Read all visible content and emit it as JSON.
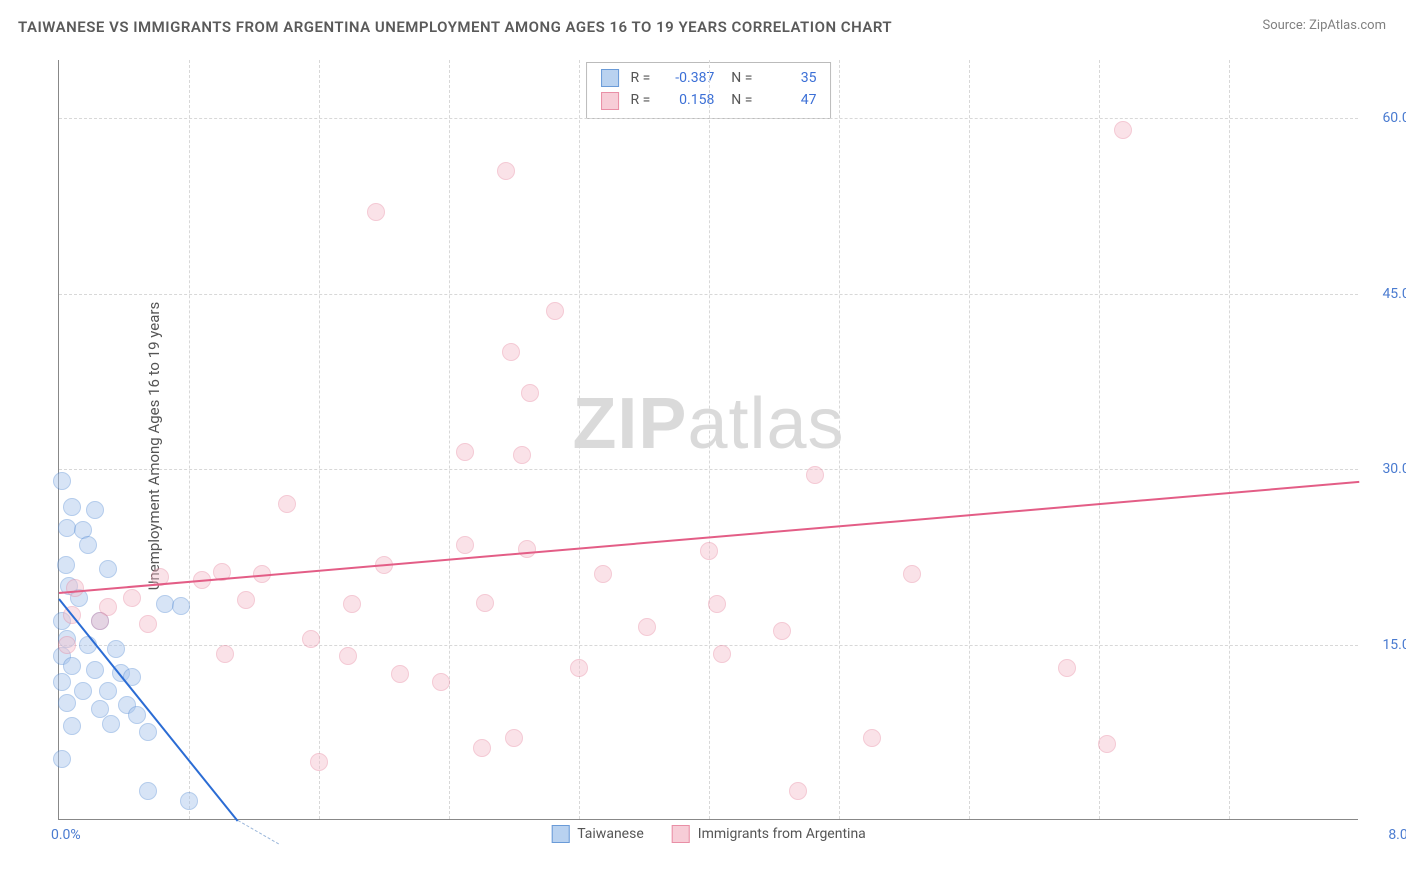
{
  "title": "TAIWANESE VS IMMIGRANTS FROM ARGENTINA UNEMPLOYMENT AMONG AGES 16 TO 19 YEARS CORRELATION CHART",
  "source": "Source: ZipAtlas.com",
  "ylabel": "Unemployment Among Ages 16 to 19 years",
  "watermark_bold": "ZIP",
  "watermark_light": "atlas",
  "chart": {
    "type": "scatter",
    "xlim": [
      0,
      8.0
    ],
    "ylim": [
      0,
      65
    ],
    "xtick_min_label": "0.0%",
    "xtick_max_label": "8.0%",
    "ytick_labels": [
      "15.0%",
      "30.0%",
      "45.0%",
      "60.0%"
    ],
    "ytick_values": [
      15,
      30,
      45,
      60
    ],
    "xgrid_values": [
      0.8,
      1.6,
      2.4,
      3.2,
      4.0,
      4.8,
      5.6,
      6.4,
      7.2
    ],
    "background_color": "#ffffff",
    "grid_color": "#d8d8d8",
    "axis_color": "#888888",
    "tick_color": "#4a7bd0",
    "marker_radius": 9,
    "marker_opacity": 0.45,
    "series": [
      {
        "name": "Taiwanese",
        "color_fill": "#a8c5ec",
        "color_stroke": "#5a8fd6",
        "swatch_fill": "#b9d2f0",
        "swatch_border": "#6a9bd8",
        "R": "-0.387",
        "N": "35",
        "trend": {
          "x1": 0.0,
          "y1": 19.0,
          "x2": 1.1,
          "y2": 0.0,
          "color": "#2b6cd4",
          "width": 2
        },
        "trend_ext": {
          "x1": 0.0,
          "y1": 19.0,
          "x2": 1.4,
          "y2": -6.0,
          "color": "#9ab6da"
        },
        "points": [
          [
            0.02,
            29.0
          ],
          [
            0.08,
            26.8
          ],
          [
            0.22,
            26.5
          ],
          [
            0.05,
            25.0
          ],
          [
            0.15,
            24.8
          ],
          [
            0.18,
            23.5
          ],
          [
            0.04,
            21.8
          ],
          [
            0.06,
            20.0
          ],
          [
            0.3,
            21.5
          ],
          [
            0.12,
            19.0
          ],
          [
            0.65,
            18.5
          ],
          [
            0.75,
            18.3
          ],
          [
            0.02,
            17.0
          ],
          [
            0.25,
            17.0
          ],
          [
            0.05,
            15.5
          ],
          [
            0.18,
            15.0
          ],
          [
            0.35,
            14.6
          ],
          [
            0.02,
            14.0
          ],
          [
            0.08,
            13.2
          ],
          [
            0.22,
            12.8
          ],
          [
            0.38,
            12.6
          ],
          [
            0.02,
            11.8
          ],
          [
            0.15,
            11.0
          ],
          [
            0.3,
            11.0
          ],
          [
            0.45,
            12.2
          ],
          [
            0.05,
            10.0
          ],
          [
            0.25,
            9.5
          ],
          [
            0.42,
            9.8
          ],
          [
            0.08,
            8.0
          ],
          [
            0.32,
            8.2
          ],
          [
            0.48,
            9.0
          ],
          [
            0.55,
            7.5
          ],
          [
            0.02,
            5.2
          ],
          [
            0.55,
            2.5
          ],
          [
            0.8,
            1.6
          ]
        ]
      },
      {
        "name": "Immigants from Argentina",
        "legend_label": "Immigrants from Argentina",
        "color_fill": "#f4c1cd",
        "color_stroke": "#e88aa2",
        "swatch_fill": "#f7cdd7",
        "swatch_border": "#e98fa6",
        "R": "0.158",
        "N": "47",
        "trend": {
          "x1": 0.0,
          "y1": 19.5,
          "x2": 8.0,
          "y2": 29.0,
          "color": "#e35d86",
          "width": 2
        },
        "points": [
          [
            6.55,
            59.0
          ],
          [
            2.75,
            55.5
          ],
          [
            1.95,
            52.0
          ],
          [
            3.05,
            43.5
          ],
          [
            2.78,
            40.0
          ],
          [
            2.9,
            36.5
          ],
          [
            2.5,
            31.5
          ],
          [
            2.85,
            31.2
          ],
          [
            4.65,
            29.5
          ],
          [
            1.4,
            27.0
          ],
          [
            2.5,
            23.5
          ],
          [
            2.88,
            23.2
          ],
          [
            4.0,
            23.0
          ],
          [
            1.0,
            21.2
          ],
          [
            1.25,
            21.0
          ],
          [
            0.62,
            20.8
          ],
          [
            0.88,
            20.5
          ],
          [
            2.0,
            21.8
          ],
          [
            3.35,
            21.0
          ],
          [
            5.25,
            21.0
          ],
          [
            0.1,
            19.8
          ],
          [
            0.45,
            19.0
          ],
          [
            0.3,
            18.2
          ],
          [
            1.15,
            18.8
          ],
          [
            1.8,
            18.5
          ],
          [
            2.62,
            18.6
          ],
          [
            4.05,
            18.5
          ],
          [
            0.08,
            17.5
          ],
          [
            0.25,
            17.0
          ],
          [
            0.55,
            16.8
          ],
          [
            1.55,
            15.5
          ],
          [
            3.62,
            16.5
          ],
          [
            4.45,
            16.2
          ],
          [
            0.05,
            15.0
          ],
          [
            1.02,
            14.2
          ],
          [
            1.78,
            14.0
          ],
          [
            3.2,
            13.0
          ],
          [
            4.08,
            14.2
          ],
          [
            6.2,
            13.0
          ],
          [
            2.1,
            12.5
          ],
          [
            2.35,
            11.8
          ],
          [
            2.8,
            7.0
          ],
          [
            2.6,
            6.2
          ],
          [
            1.6,
            5.0
          ],
          [
            4.55,
            2.5
          ],
          [
            5.0,
            7.0
          ],
          [
            6.45,
            6.5
          ]
        ]
      }
    ]
  },
  "legend": {
    "items": [
      "Taiwanese",
      "Immigrants from Argentina"
    ]
  }
}
